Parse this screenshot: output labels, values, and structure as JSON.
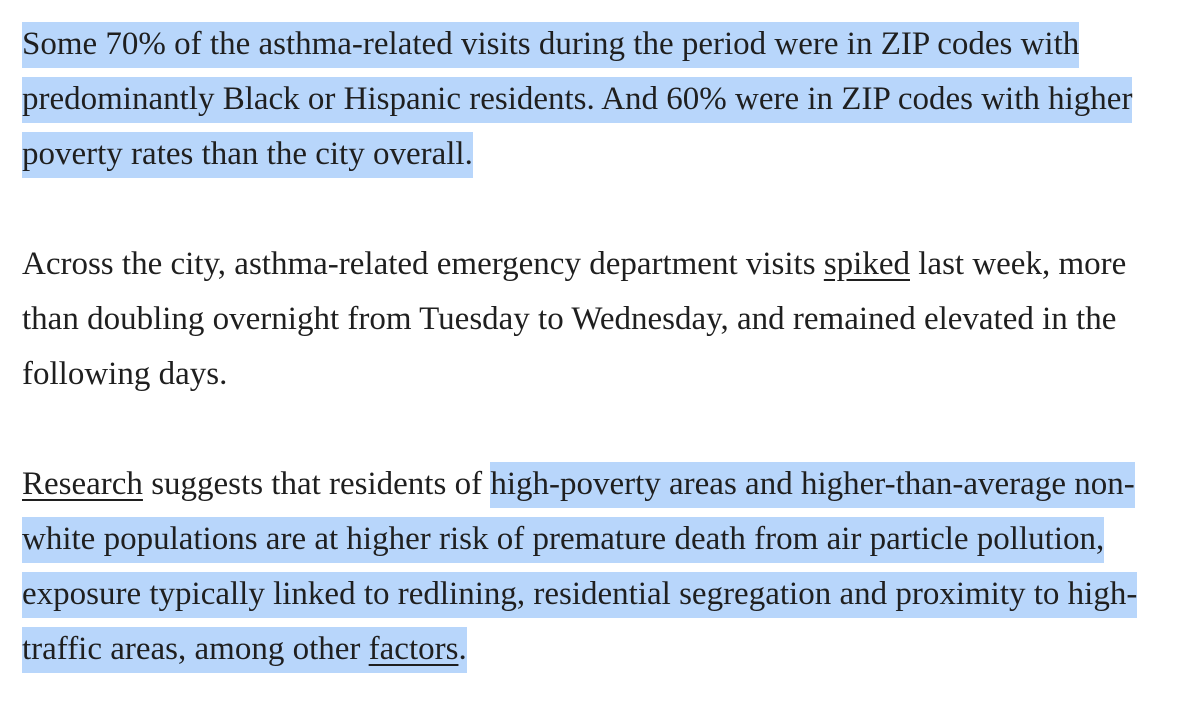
{
  "paragraph_1": {
    "text": "Some 70% of the asthma-related visits during the period were in ZIP codes with predominantly Black or Hispanic residents. And 60% were in ZIP codes with higher poverty rates than the city overall."
  },
  "paragraph_2": {
    "text_before": "Across the city, asthma-related emergency department visits ",
    "link_spiked": "spiked",
    "text_after": " last week, more than doubling overnight from Tuesday to Wednesday, and remained elevated in the following days."
  },
  "paragraph_3": {
    "link_research": "Research",
    "text_plain": " suggests that residents of ",
    "text_highlighted": "high-poverty areas and higher-than-average non-white populations are at higher risk of premature death from air particle pollution, exposure typically linked to redlining, residential segregation and proximity to high-traffic areas, among other ",
    "link_factors": "factors",
    "text_end": "."
  },
  "colors": {
    "text": "#1f1f1f",
    "selection_highlight": "#b8d6fb"
  }
}
